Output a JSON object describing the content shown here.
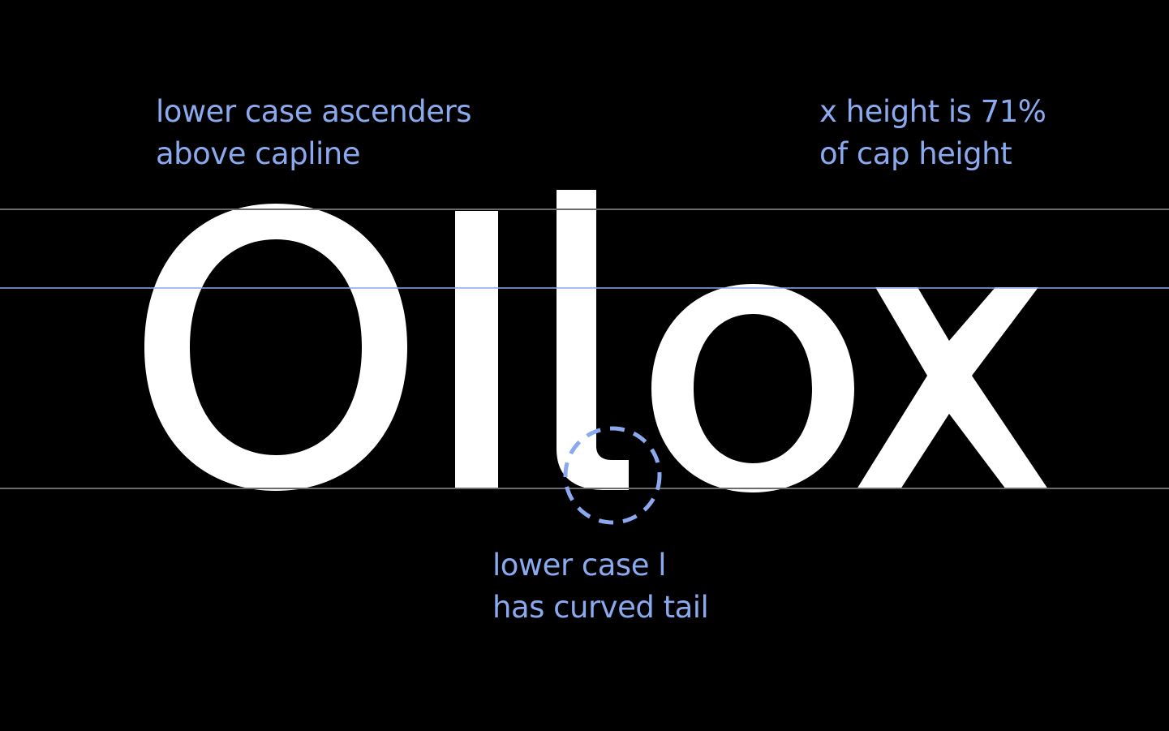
{
  "specimen": {
    "glyphs": [
      "O",
      "l",
      "l",
      "o",
      "x"
    ],
    "foreground": "#ffffff",
    "background": "#000000"
  },
  "guides": {
    "line_color_gray": "#6b6b6b",
    "line_color_blue": "#8aa9ee"
  },
  "annotations": {
    "ascenders": {
      "line1": "lower case ascenders",
      "line2": "above capline"
    },
    "xheight": {
      "line1": "x height is 71%",
      "line2": "of cap height"
    },
    "tail": {
      "line1": "lower case l",
      "line2": "has curved tail"
    },
    "color": "#8aa9ee"
  },
  "callout": {
    "shape": "dashed-circle",
    "color": "#8aa9ee"
  }
}
